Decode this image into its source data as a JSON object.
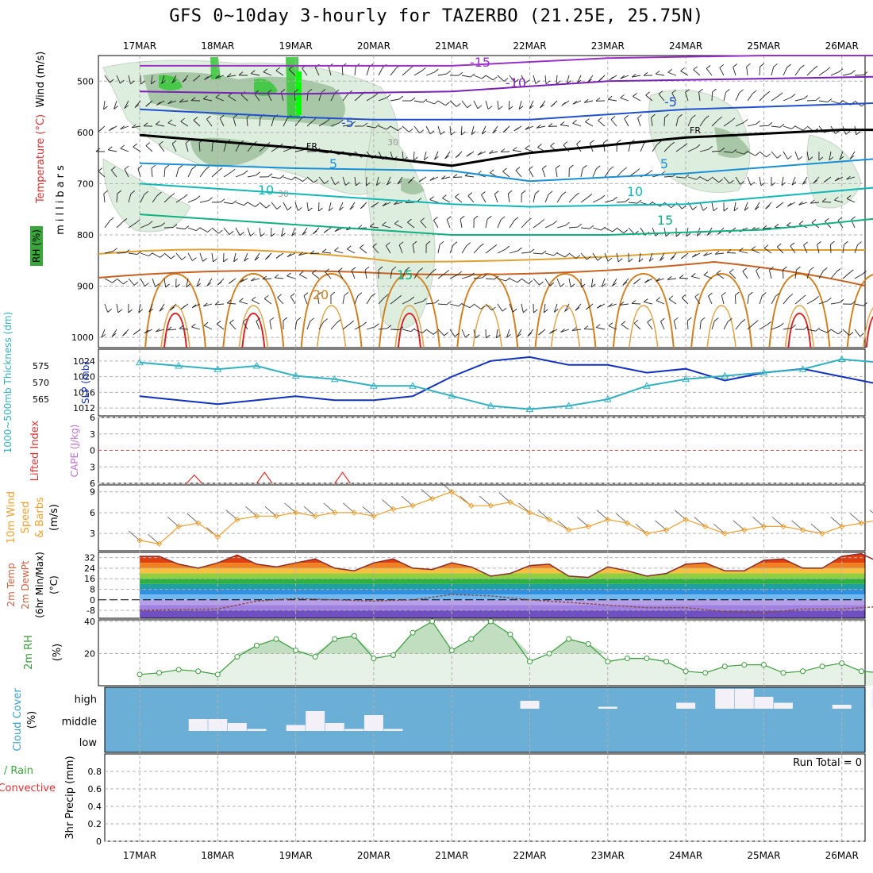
{
  "title": "GFS 0~10day 3-hourly for TAZERBO (21.25E, 25.75N)",
  "dates": [
    "17MAR",
    "18MAR",
    "19MAR",
    "20MAR",
    "21MAR",
    "22MAR",
    "23MAR",
    "24MAR",
    "25MAR",
    "26MAR"
  ],
  "colors": {
    "grid": "#b0b0b0",
    "sigma_green": "#98d898",
    "cloud_bg": "#6baed6",
    "precip_green": "#3aa53a"
  },
  "chart_data": [
    {
      "type": "contour",
      "panel": "upper-air",
      "ylabel_parts": [
        "Wind (m/s)",
        "Temperature (°C)",
        "RH (%)",
        "millibars"
      ],
      "y_ticks": [
        500,
        600,
        700,
        800,
        900,
        1000
      ],
      "ylim": [
        450,
        1020
      ],
      "contour_labels": [
        "-15",
        "-10",
        "-5",
        "-5",
        "FR",
        "FR",
        "5",
        "5",
        "10",
        "10",
        "15",
        "15",
        "20",
        "30",
        "30"
      ],
      "isotherms": [
        {
          "name": "-15",
          "color": "#9a30c8",
          "x": [
            0,
            2,
            4,
            6,
            8,
            10
          ],
          "y": [
            470,
            470,
            470,
            455,
            450,
            450
          ]
        },
        {
          "name": "-10",
          "color": "#7a20b8",
          "x": [
            0,
            2,
            4,
            6,
            8,
            10
          ],
          "y": [
            520,
            525,
            520,
            500,
            495,
            490
          ]
        },
        {
          "name": "-5",
          "color": "#2050d0",
          "x": [
            0,
            2,
            3,
            5,
            7,
            10
          ],
          "y": [
            555,
            570,
            575,
            575,
            555,
            540
          ]
        },
        {
          "name": "FR",
          "color": "#000000",
          "x": [
            0,
            2,
            4,
            5,
            7,
            9,
            10
          ],
          "y": [
            605,
            630,
            665,
            640,
            610,
            595,
            595
          ]
        },
        {
          "name": "5",
          "color": "#1890d8",
          "x": [
            0,
            2,
            4,
            5,
            7,
            10
          ],
          "y": [
            660,
            670,
            675,
            695,
            680,
            645
          ]
        },
        {
          "name": "10",
          "color": "#10b8b8",
          "x": [
            0,
            2,
            4,
            5,
            7,
            10
          ],
          "y": [
            700,
            720,
            740,
            745,
            740,
            700
          ]
        },
        {
          "name": "15",
          "color": "#10b080",
          "x": [
            0,
            2,
            4,
            6,
            8,
            10
          ],
          "y": [
            760,
            780,
            800,
            800,
            790,
            760
          ]
        }
      ]
    },
    {
      "type": "line",
      "panel": "thickness-slp",
      "ylabel_parts": [
        "1000~500mb Thickness (dm)",
        "SLP (mb)"
      ],
      "left_ticks": [
        565,
        570,
        575
      ],
      "right_ticks": [
        1012,
        1016,
        1020,
        1024
      ],
      "series": [
        {
          "name": "SLP",
          "color": "#1030c0",
          "x": [
            0,
            0.5,
            1,
            1.5,
            2,
            2.5,
            3,
            3.5,
            4,
            4.5,
            5,
            5.5,
            6,
            6.5,
            7,
            7.5,
            8,
            8.5,
            9,
            9.5,
            10
          ],
          "y": [
            1015,
            1014,
            1013,
            1014,
            1015,
            1014,
            1014,
            1015,
            1020,
            1024,
            1025,
            1023,
            1023,
            1021,
            1022,
            1019,
            1021,
            1022,
            1020,
            1018,
            1017
          ]
        },
        {
          "name": "Thickness",
          "color": "#30b0c0",
          "x": [
            0,
            0.5,
            1,
            1.5,
            2,
            2.5,
            3,
            3.5,
            4,
            4.5,
            5,
            5.5,
            6,
            6.5,
            7,
            7.5,
            8,
            8.5,
            9,
            9.5,
            10
          ],
          "y": [
            576,
            575,
            574,
            575,
            572,
            571,
            569,
            569,
            566,
            563,
            562,
            563,
            565,
            569,
            571,
            572,
            573,
            574,
            577,
            576,
            576
          ]
        }
      ]
    },
    {
      "type": "line",
      "panel": "cape-li",
      "ylabel_parts": [
        "Lifted Index",
        "CAPE (J/kg)"
      ],
      "y_ticks": [
        -6,
        -3,
        0,
        3,
        6
      ],
      "ylim": [
        -6,
        6
      ],
      "series": [
        {
          "name": "Lifted Index",
          "color": "#e03030",
          "x": [
            0.6,
            0.7,
            0.8,
            1.5,
            1.6,
            1.7,
            2.5,
            2.6,
            2.7
          ],
          "y": [
            6,
            4.5,
            6,
            6,
            4,
            6,
            6,
            4,
            6
          ]
        }
      ]
    },
    {
      "type": "line",
      "panel": "wind10m",
      "ylabel_parts": [
        "10m Wind",
        "Speed",
        "& Barbs",
        "(m/s)"
      ],
      "y_ticks": [
        3,
        6,
        9
      ],
      "ylim": [
        0.5,
        10
      ],
      "series": [
        {
          "name": "10m Wind Speed",
          "color": "#f0a030",
          "x": [
            0,
            0.25,
            0.5,
            0.75,
            1,
            1.25,
            1.5,
            1.75,
            2,
            2.25,
            2.5,
            2.75,
            3,
            3.25,
            3.5,
            3.75,
            4,
            4.25,
            4.5,
            4.75,
            5,
            5.25,
            5.5,
            5.75,
            6,
            6.25,
            6.5,
            6.75,
            7,
            7.25,
            7.5,
            7.75,
            8,
            8.25,
            8.5,
            8.75,
            9,
            9.25,
            9.5,
            9.75,
            10
          ],
          "y": [
            2,
            1.5,
            4,
            4.5,
            2.5,
            5,
            5.5,
            5.5,
            6,
            5.5,
            6,
            6,
            5.5,
            6.5,
            7,
            8,
            9,
            7,
            7,
            7.5,
            6,
            5,
            3.5,
            4,
            5,
            4.5,
            3,
            3.5,
            5,
            4,
            3,
            3.5,
            4,
            4,
            3.5,
            3,
            4,
            4.5,
            5,
            4.5,
            3.5
          ]
        }
      ]
    },
    {
      "type": "area",
      "panel": "temp2m",
      "ylabel_parts": [
        "2m Temp",
        "2m DewPt",
        "(6hr Min/Max)",
        "(°C)"
      ],
      "y_ticks": [
        -8,
        0,
        8,
        16,
        24,
        32
      ],
      "ylim": [
        -14,
        36
      ],
      "series": [
        {
          "name": "2m Temp",
          "color": "#8b2a2a",
          "x": [
            0,
            0.25,
            0.5,
            0.75,
            1,
            1.25,
            1.5,
            1.75,
            2,
            2.25,
            2.5,
            2.75,
            3,
            3.25,
            3.5,
            3.75,
            4,
            4.25,
            4.5,
            4.75,
            5,
            5.25,
            5.5,
            5.75,
            6,
            6.25,
            6.5,
            6.75,
            7,
            7.25,
            7.5,
            7.75,
            8,
            8.25,
            8.5,
            8.75,
            9,
            9.25,
            9.5,
            9.75,
            10
          ],
          "y": [
            33,
            33,
            27,
            24,
            28,
            34,
            27,
            25,
            28,
            31,
            24,
            22,
            28,
            31,
            24,
            23,
            28,
            25,
            18,
            20,
            26,
            27,
            18,
            17,
            25,
            22,
            18,
            20,
            27,
            28,
            22,
            22,
            30,
            31,
            24,
            24,
            33,
            35,
            28,
            26,
            25
          ]
        },
        {
          "name": "2m DewPt",
          "color": "#8b4a3a",
          "x": [
            0,
            1,
            1.5,
            2,
            2.5,
            3,
            3.5,
            4,
            4.5,
            5,
            5.5,
            6,
            6.5,
            7,
            7.5,
            8,
            8.5,
            9,
            9.5,
            10
          ],
          "y": [
            -8,
            -7,
            -1,
            1,
            0,
            -1,
            0,
            4,
            3,
            0,
            -2,
            -4,
            -6,
            -6,
            -9,
            -10,
            -7,
            -7,
            -5,
            -4
          ]
        }
      ]
    },
    {
      "type": "area",
      "panel": "rh2m",
      "ylabel_parts": [
        "2m RH",
        "(%)"
      ],
      "y_ticks": [
        20,
        40
      ],
      "ylim": [
        0,
        41
      ],
      "series": [
        {
          "name": "2m RH",
          "color": "#3a9a3a",
          "x": [
            0,
            0.25,
            0.5,
            0.75,
            1,
            1.25,
            1.5,
            1.75,
            2,
            2.25,
            2.5,
            2.75,
            3,
            3.25,
            3.5,
            3.75,
            4,
            4.25,
            4.5,
            4.75,
            5,
            5.25,
            5.5,
            5.75,
            6,
            6.25,
            6.5,
            6.75,
            7,
            7.25,
            7.5,
            7.75,
            8,
            8.25,
            8.5,
            8.75,
            9,
            9.25,
            9.5,
            9.75,
            10
          ],
          "y": [
            7,
            8,
            10,
            9,
            7,
            18,
            25,
            29,
            22,
            18,
            29,
            31,
            17,
            19,
            33,
            40,
            22,
            29,
            40,
            32,
            15,
            20,
            29,
            26,
            15,
            17,
            17,
            15,
            9,
            8,
            12,
            13,
            13,
            8,
            9,
            12,
            14,
            9,
            8,
            15,
            16
          ]
        }
      ]
    },
    {
      "type": "bar",
      "panel": "cloud",
      "ylabel_parts": [
        "Cloud Cover",
        "(%)"
      ],
      "y_ticks": [
        "high",
        "middle",
        "low"
      ],
      "series": [
        {
          "name": "high",
          "x": [
            5,
            6,
            7,
            7.5,
            7.75,
            8,
            8.25,
            9,
            9.5
          ],
          "y": [
            40,
            10,
            30,
            100,
            100,
            60,
            30,
            20,
            100
          ]
        },
        {
          "name": "middle",
          "x": [
            0.75,
            1,
            1.25,
            1.5,
            2,
            2.25,
            2.5,
            2.75,
            3,
            3.25
          ],
          "y": [
            60,
            60,
            40,
            10,
            30,
            100,
            40,
            10,
            80,
            10
          ]
        }
      ]
    },
    {
      "type": "bar",
      "panel": "precip",
      "ylabel_parts": [
        "Total / Rain",
        "Convective",
        "3hr Precip (mm)"
      ],
      "y_ticks": [
        0,
        0.2,
        0.4,
        0.6,
        0.8
      ],
      "ylim": [
        0,
        1
      ],
      "annotation": "Run Total = 0",
      "series": [
        {
          "name": "Total",
          "x": [],
          "y": []
        }
      ]
    }
  ]
}
